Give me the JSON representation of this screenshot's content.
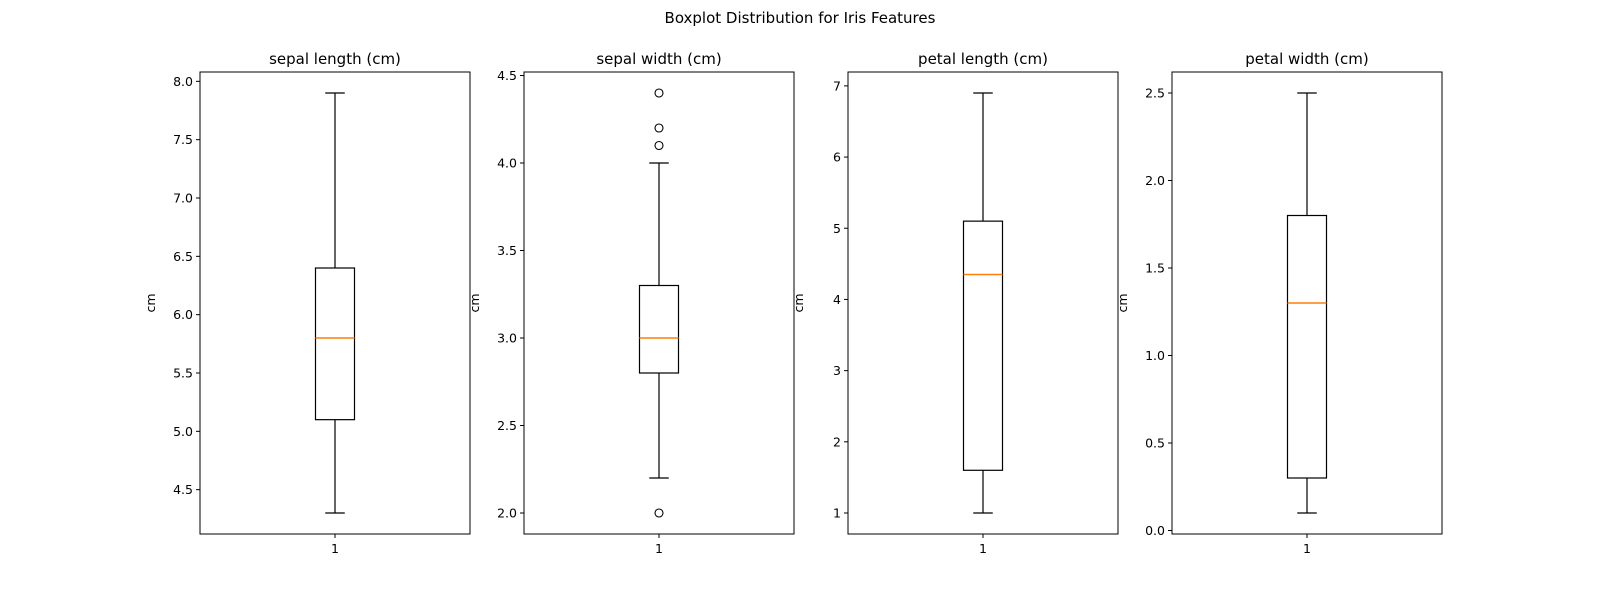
{
  "chart_data": {
    "type": "boxplot",
    "title": "Boxplot Distribution for Iris Features",
    "panels": [
      {
        "title": "sepal length (cm)",
        "ylabel": "cm",
        "xticks": [
          "1"
        ],
        "ylim": [
          4.12,
          8.08
        ],
        "yticks": [
          4.5,
          5.0,
          5.5,
          6.0,
          6.5,
          7.0,
          7.5,
          8.0
        ],
        "yticklabels": [
          "4.5",
          "5.0",
          "5.5",
          "6.0",
          "6.5",
          "7.0",
          "7.5",
          "8.0"
        ],
        "box": {
          "whisker_low": 4.3,
          "q1": 5.1,
          "median": 5.8,
          "q3": 6.4,
          "whisker_high": 7.9,
          "fliers": []
        }
      },
      {
        "title": "sepal width (cm)",
        "ylabel": "cm",
        "xticks": [
          "1"
        ],
        "ylim": [
          1.88,
          4.52
        ],
        "yticks": [
          2.0,
          2.5,
          3.0,
          3.5,
          4.0,
          4.5
        ],
        "yticklabels": [
          "2.0",
          "2.5",
          "3.0",
          "3.5",
          "4.0",
          "4.5"
        ],
        "box": {
          "whisker_low": 2.2,
          "q1": 2.8,
          "median": 3.0,
          "q3": 3.3,
          "whisker_high": 4.0,
          "fliers": [
            4.4,
            4.2,
            4.1,
            2.0
          ]
        }
      },
      {
        "title": "petal length (cm)",
        "ylabel": "cm",
        "xticks": [
          "1"
        ],
        "ylim": [
          0.705,
          7.195
        ],
        "yticks": [
          1,
          2,
          3,
          4,
          5,
          6,
          7
        ],
        "yticklabels": [
          "1",
          "2",
          "3",
          "4",
          "5",
          "6",
          "7"
        ],
        "box": {
          "whisker_low": 1.0,
          "q1": 1.6,
          "median": 4.35,
          "q3": 5.1,
          "whisker_high": 6.9,
          "fliers": []
        }
      },
      {
        "title": "petal width (cm)",
        "ylabel": "cm",
        "xticks": [
          "1"
        ],
        "ylim": [
          -0.02,
          2.62
        ],
        "yticks": [
          0.0,
          0.5,
          1.0,
          1.5,
          2.0,
          2.5
        ],
        "yticklabels": [
          "0.0",
          "0.5",
          "1.0",
          "1.5",
          "2.0",
          "2.5"
        ],
        "box": {
          "whisker_low": 0.1,
          "q1": 0.3,
          "median": 1.3,
          "q3": 1.8,
          "whisker_high": 2.5,
          "fliers": []
        }
      }
    ],
    "colors": {
      "box": "#000000",
      "median": "#ff7f0e"
    },
    "grid": false,
    "legend": "none"
  }
}
